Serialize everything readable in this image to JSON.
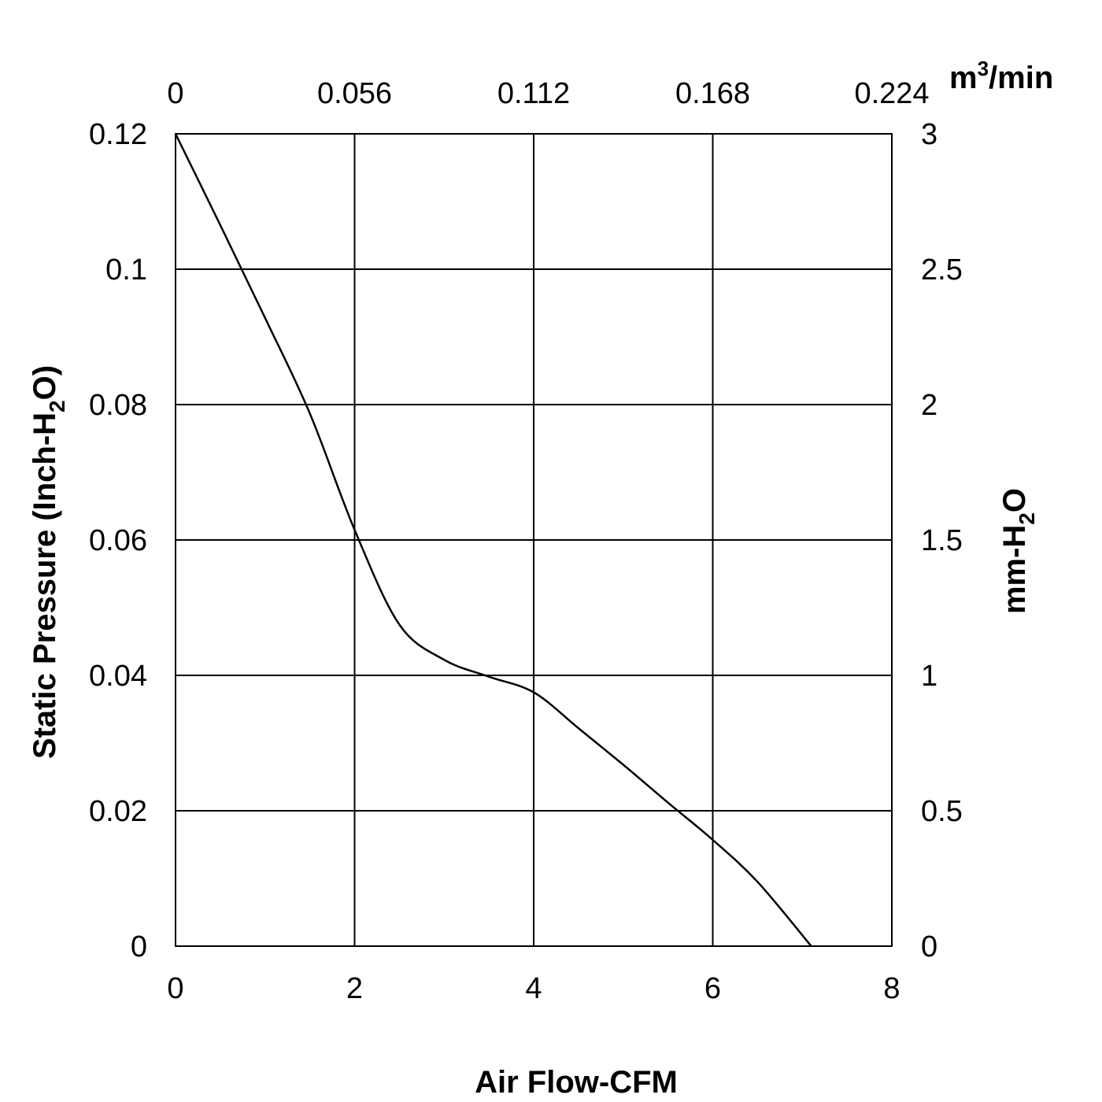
{
  "chart_data": {
    "type": "line",
    "grid": true,
    "x": {
      "label": "Air Flow-CFM",
      "ticks": [
        "0",
        "2",
        "4",
        "6",
        "8"
      ],
      "range": [
        0,
        8
      ]
    },
    "x2": {
      "unit": "m³/min",
      "unit_base": "m",
      "unit_sup": "3",
      "unit_tail": "/min",
      "ticks": [
        "0",
        "0.056",
        "0.112",
        "0.168",
        "0.224"
      ],
      "range": [
        0,
        0.224
      ]
    },
    "y": {
      "label": "Static Pressure (Inch-H₂O)",
      "label_parts": [
        "Static Pressure (Inch-H",
        "2",
        "O)"
      ],
      "ticks": [
        "0",
        "0.02",
        "0.04",
        "0.06",
        "0.08",
        "0.1",
        "0.12"
      ],
      "range": [
        0,
        0.12
      ]
    },
    "y2": {
      "label": "mm-H₂O",
      "label_parts": [
        "mm-H",
        "2",
        "O"
      ],
      "ticks": [
        "0",
        "0.5",
        "1",
        "1.5",
        "2",
        "2.5",
        "3"
      ],
      "range": [
        0,
        3
      ]
    },
    "series": [
      {
        "x": [
          0,
          0.5,
          1.0,
          1.5,
          2.0,
          2.5,
          3.0,
          3.5,
          4.0,
          4.5,
          5.0,
          5.5,
          6.0,
          6.5,
          7.1
        ],
        "y": [
          0.12,
          0.1065,
          0.0928,
          0.0787,
          0.0615,
          0.0475,
          0.0423,
          0.0398,
          0.0375,
          0.0322,
          0.0268,
          0.0212,
          0.0157,
          0.0095,
          0.0
        ]
      }
    ]
  }
}
